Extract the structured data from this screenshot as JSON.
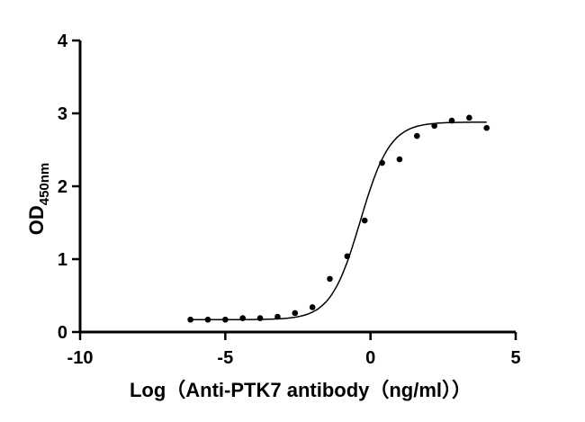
{
  "chart_data": {
    "type": "scatter",
    "title": "",
    "xlabel": "Log（Anti-PTK7 antibody（ng/ml））",
    "ylabel": "OD450nm",
    "ylabel_main": "OD",
    "ylabel_sub": "450nm",
    "xlim": [
      -10,
      5
    ],
    "ylim": [
      0,
      4
    ],
    "xticks": [
      "-10",
      "-5",
      "0",
      "5"
    ],
    "yticks": [
      "0",
      "1",
      "2",
      "3",
      "4"
    ],
    "grid": false,
    "legend": null,
    "series": [
      {
        "name": "Anti-PTK7 antibody",
        "x": [
          -6.2,
          -5.6,
          -5.0,
          -4.4,
          -3.8,
          -3.2,
          -2.6,
          -2.0,
          -1.4,
          -0.8,
          -0.2,
          0.4,
          1.0,
          1.6,
          2.2,
          2.8,
          3.4,
          4.0
        ],
        "values": [
          0.17,
          0.17,
          0.17,
          0.19,
          0.19,
          0.21,
          0.26,
          0.34,
          0.73,
          1.04,
          1.53,
          2.32,
          2.37,
          2.69,
          2.83,
          2.9,
          2.94,
          2.8
        ],
        "fit": "4PL sigmoid",
        "fit_params": {
          "bottom": 0.17,
          "top": 2.88,
          "logEC50": -0.35,
          "hill": 0.85
        }
      }
    ]
  }
}
